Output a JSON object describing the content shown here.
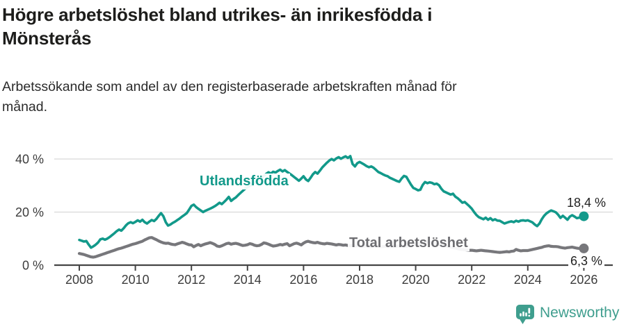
{
  "header": {
    "title": "Högre arbetslöshet bland utrikes- än inrikesfödda i\nMönsterås",
    "subtitle": "Arbetssökande som andel av den registerbaserade arbetskraften månad för\nmånad."
  },
  "footer": {
    "brand": "Newsworthy",
    "logo_icon": "newsworthy-pin-barchart",
    "brand_color": "#3f9e8e"
  },
  "chart_data": {
    "type": "line",
    "title": "Högre arbetslöshet bland utrikes- än inrikesfödda i Mönsterås",
    "subtitle": "Arbetssökande som andel av den registerbaserade arbetskraften månad för månad.",
    "unit": "%",
    "x_start": 2008,
    "x_end": 2026,
    "x_interval_months": 1,
    "x_ticks": [
      2008,
      2010,
      2012,
      2014,
      2016,
      2018,
      2020,
      2022,
      2024,
      2026
    ],
    "y_ticks": [
      {
        "value": 0,
        "label": "0 %"
      },
      {
        "value": 20,
        "label": "20 %"
      },
      {
        "value": 40,
        "label": "40 %"
      }
    ],
    "ylim": [
      0,
      44
    ],
    "grid": "horizontal",
    "legend_position": "inline-labels",
    "colors": {
      "grid": "#dcdcdc",
      "axis": "#454545",
      "tick_text": "#3c3c3c"
    },
    "series": [
      {
        "id": "total",
        "name": "Total arbetslöshet",
        "color": "#77777b",
        "stroke_width": 4.2,
        "end_label": "6,3 %",
        "end_value": 6.3,
        "values": [
          4.4,
          4.2,
          4.0,
          3.7,
          3.4,
          3.1,
          3.0,
          3.2,
          3.5,
          3.8,
          4.1,
          4.4,
          4.7,
          5.0,
          5.3,
          5.6,
          5.9,
          6.2,
          6.4,
          6.7,
          7.0,
          7.3,
          7.6,
          7.9,
          8.1,
          8.4,
          8.7,
          9.0,
          9.5,
          9.9,
          10.3,
          10.4,
          10.0,
          9.6,
          9.1,
          8.7,
          8.4,
          8.2,
          8.3,
          8.0,
          7.8,
          7.7,
          8.0,
          8.3,
          8.6,
          8.4,
          8.0,
          7.7,
          7.6,
          6.9,
          7.4,
          7.8,
          7.3,
          7.7,
          8.0,
          8.2,
          8.5,
          8.2,
          7.8,
          7.2,
          7.0,
          7.3,
          7.7,
          8.1,
          8.3,
          7.9,
          8.1,
          8.2,
          8.0,
          7.7,
          7.4,
          7.5,
          7.7,
          8.1,
          7.9,
          7.5,
          7.3,
          7.4,
          7.8,
          8.4,
          8.2,
          7.9,
          7.5,
          7.2,
          7.3,
          7.5,
          7.8,
          7.6,
          7.9,
          8.1,
          7.3,
          7.7,
          8.1,
          8.3,
          8.0,
          7.6,
          8.3,
          8.8,
          9.0,
          8.7,
          8.5,
          8.4,
          8.6,
          8.3,
          8.1,
          8.0,
          8.2,
          8.1,
          8.0,
          7.8,
          7.6,
          7.8,
          7.7,
          7.5,
          7.6,
          7.4,
          7.3,
          7.4,
          7.2,
          7.3,
          7.2,
          7.0,
          7.1,
          7.3,
          7.1,
          6.9,
          7.0,
          7.2,
          7.0,
          6.9,
          7.0,
          7.1,
          7.2,
          7.0,
          6.9,
          7.0,
          7.2,
          7.3,
          7.2,
          7.0,
          7.1,
          7.3,
          7.4,
          7.6,
          7.8,
          8.0,
          8.3,
          8.8,
          9.0,
          8.8,
          8.6,
          8.4,
          8.2,
          8.0,
          7.8,
          7.6,
          7.4,
          7.2,
          7.0,
          6.8,
          6.6,
          6.4,
          6.2,
          6.0,
          5.9,
          5.8,
          5.7,
          5.6,
          5.6,
          5.5,
          5.4,
          5.5,
          5.6,
          5.5,
          5.4,
          5.3,
          5.2,
          5.1,
          5.0,
          4.9,
          4.8,
          4.9,
          5.0,
          5.1,
          5.0,
          5.2,
          5.3,
          5.9,
          5.6,
          5.4,
          5.5,
          5.5,
          5.5,
          5.7,
          5.9,
          6.1,
          6.3,
          6.5,
          6.7,
          7.0,
          7.2,
          7.3,
          7.1,
          7.0,
          7.0,
          6.9,
          6.7,
          6.5,
          6.4,
          6.6,
          6.7,
          6.8,
          6.6,
          6.4,
          6.3,
          6.2,
          6.3
        ]
      },
      {
        "id": "utlandsfodda",
        "name": "Utlandsfödda",
        "color": "#12998a",
        "stroke_width": 3.6,
        "end_label": "18,4 %",
        "end_value": 18.4,
        "values": [
          9.5,
          9.2,
          8.9,
          9.1,
          7.8,
          6.6,
          7.1,
          7.7,
          8.5,
          9.7,
          10.0,
          9.6,
          10.0,
          10.6,
          11.3,
          12.0,
          12.8,
          13.4,
          13.0,
          13.9,
          15.0,
          15.8,
          16.2,
          15.8,
          16.3,
          16.9,
          16.4,
          17.1,
          16.2,
          15.7,
          16.4,
          17.0,
          16.6,
          17.4,
          18.6,
          19.6,
          18.4,
          16.2,
          14.9,
          15.3,
          15.9,
          16.4,
          17.0,
          17.6,
          18.3,
          18.9,
          19.6,
          20.9,
          22.3,
          22.8,
          21.9,
          21.2,
          20.6,
          20.0,
          20.5,
          20.9,
          21.3,
          21.7,
          22.2,
          22.8,
          23.5,
          23.0,
          23.8,
          24.7,
          25.7,
          24.2,
          24.9,
          25.5,
          26.4,
          27.2,
          28.0,
          28.8,
          29.4,
          29.9,
          30.5,
          31.1,
          31.7,
          32.3,
          32.9,
          33.6,
          34.4,
          35.0,
          34.5,
          35.2,
          34.9,
          35.5,
          36.0,
          35.3,
          35.8,
          35.1,
          34.5,
          33.9,
          33.2,
          32.5,
          31.8,
          32.6,
          33.5,
          32.3,
          31.7,
          32.9,
          34.2,
          35.1,
          34.5,
          35.6,
          36.8,
          37.7,
          38.6,
          39.4,
          40.0,
          39.5,
          40.2,
          40.7,
          40.1,
          40.6,
          41.0,
          40.4,
          41.1,
          38.1,
          37.2,
          38.4,
          38.9,
          38.4,
          37.9,
          37.3,
          36.9,
          37.2,
          36.7,
          35.9,
          35.1,
          34.7,
          34.2,
          33.8,
          33.5,
          32.9,
          32.5,
          32.1,
          31.7,
          31.4,
          32.7,
          33.6,
          33.3,
          31.8,
          30.3,
          29.1,
          28.7,
          28.2,
          28.4,
          30.2,
          31.3,
          30.9,
          31.2,
          31.0,
          30.5,
          30.7,
          30.1,
          28.8,
          27.8,
          27.4,
          27.0,
          26.6,
          26.9,
          25.8,
          25.2,
          24.4,
          23.5,
          23.8,
          23.0,
          22.2,
          21.3,
          20.0,
          18.9,
          18.1,
          17.7,
          17.3,
          17.9,
          17.1,
          17.7,
          16.9,
          17.3,
          16.8,
          16.7,
          16.2,
          15.7,
          16.0,
          16.3,
          16.5,
          16.2,
          16.7,
          16.4,
          16.8,
          16.9,
          16.7,
          16.9,
          16.5,
          16.1,
          15.3,
          14.7,
          15.7,
          17.3,
          18.6,
          19.5,
          20.1,
          20.6,
          20.3,
          19.9,
          19.0,
          17.8,
          18.6,
          17.9,
          17.1,
          18.3,
          18.8,
          18.3,
          17.7,
          17.9,
          18.1,
          18.4
        ]
      }
    ]
  }
}
